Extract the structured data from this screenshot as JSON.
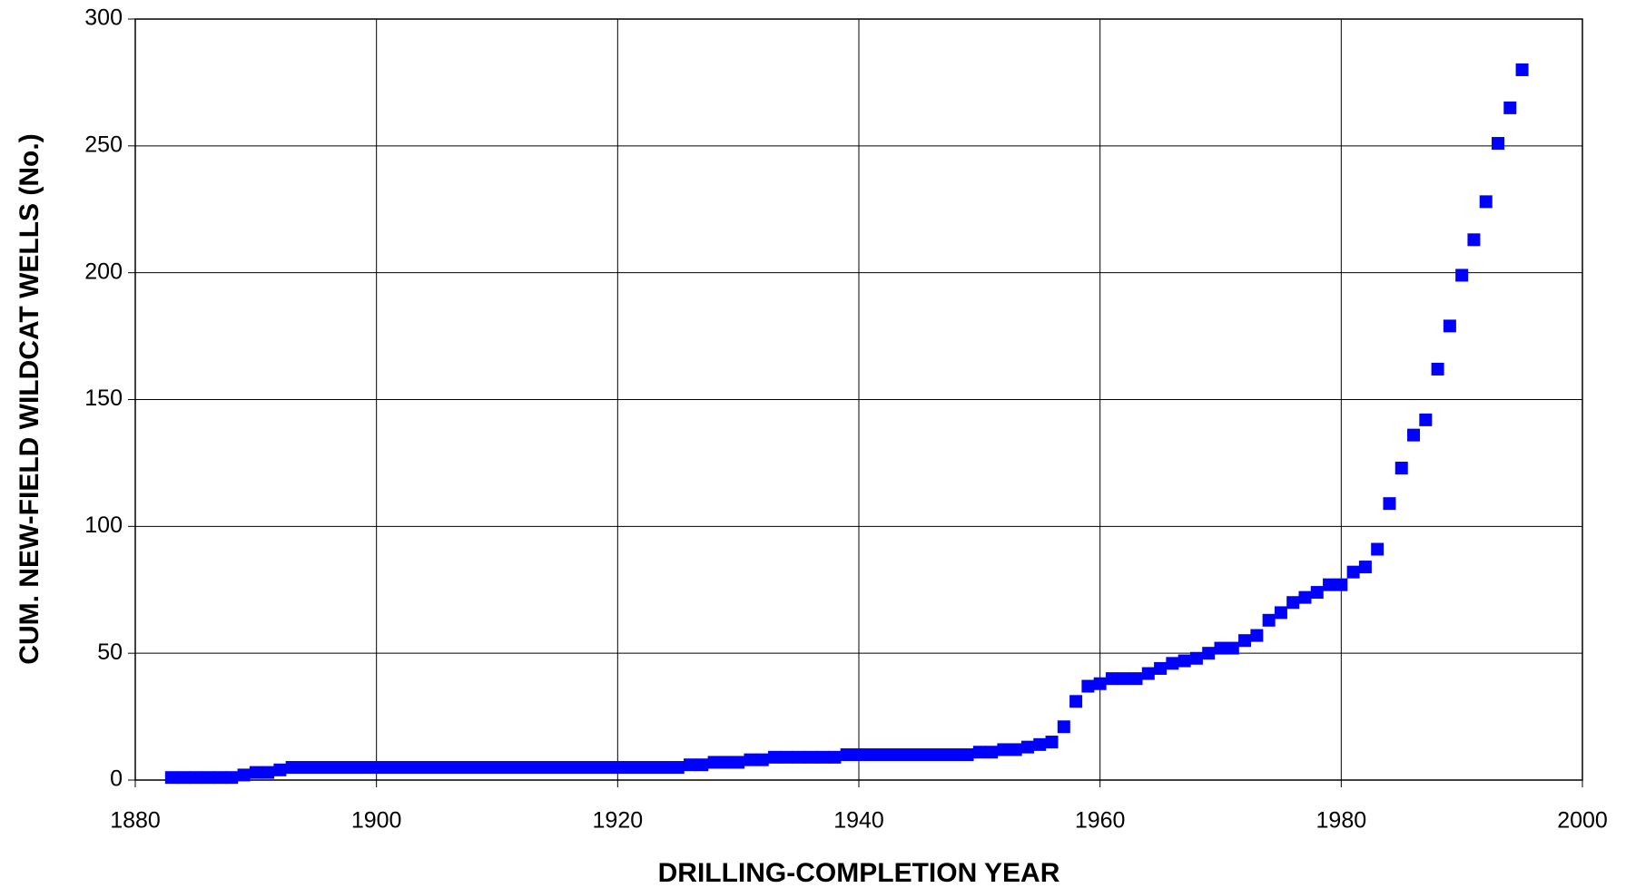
{
  "chart_data": {
    "type": "scatter",
    "xlabel": "DRILLING-COMPLETION YEAR",
    "ylabel": "CUM. NEW-FIELD WILDCAT WELLS (No.)",
    "color": "#0000ff",
    "grid": true,
    "xlim": [
      1880,
      2000
    ],
    "xticks": [
      1880,
      1900,
      1920,
      1940,
      1960,
      1980,
      2000
    ],
    "ylim": [
      0,
      300
    ],
    "yticks": [
      0,
      50,
      100,
      150,
      200,
      250,
      300
    ],
    "x": [
      1883,
      1884,
      1885,
      1886,
      1887,
      1888,
      1889,
      1890,
      1891,
      1892,
      1893,
      1894,
      1895,
      1896,
      1897,
      1898,
      1899,
      1900,
      1901,
      1902,
      1903,
      1904,
      1905,
      1906,
      1907,
      1908,
      1909,
      1910,
      1911,
      1912,
      1913,
      1914,
      1915,
      1916,
      1917,
      1918,
      1919,
      1920,
      1921,
      1922,
      1923,
      1924,
      1925,
      1926,
      1927,
      1928,
      1929,
      1930,
      1931,
      1932,
      1933,
      1934,
      1935,
      1936,
      1937,
      1938,
      1939,
      1940,
      1941,
      1942,
      1943,
      1944,
      1945,
      1946,
      1947,
      1948,
      1949,
      1950,
      1951,
      1952,
      1953,
      1954,
      1955,
      1956,
      1957,
      1958,
      1959,
      1960,
      1961,
      1962,
      1963,
      1964,
      1965,
      1966,
      1967,
      1968,
      1969,
      1970,
      1971,
      1972,
      1973,
      1974,
      1975,
      1976,
      1977,
      1978,
      1979,
      1980,
      1981,
      1982,
      1983,
      1984,
      1985,
      1986,
      1987,
      1988,
      1989,
      1990,
      1991,
      1992,
      1993,
      1994,
      1995
    ],
    "values": [
      1,
      1,
      1,
      1,
      1,
      1,
      2,
      3,
      3,
      4,
      5,
      5,
      5,
      5,
      5,
      5,
      5,
      5,
      5,
      5,
      5,
      5,
      5,
      5,
      5,
      5,
      5,
      5,
      5,
      5,
      5,
      5,
      5,
      5,
      5,
      5,
      5,
      5,
      5,
      5,
      5,
      5,
      5,
      6,
      6,
      7,
      7,
      7,
      8,
      8,
      9,
      9,
      9,
      9,
      9,
      9,
      10,
      10,
      10,
      10,
      10,
      10,
      10,
      10,
      10,
      10,
      10,
      11,
      11,
      12,
      12,
      13,
      14,
      15,
      21,
      31,
      37,
      38,
      40,
      40,
      40,
      42,
      44,
      46,
      47,
      48,
      50,
      52,
      52,
      55,
      57,
      63,
      66,
      70,
      72,
      74,
      77,
      77,
      82,
      84,
      91,
      109,
      123,
      136,
      142,
      162,
      179,
      199,
      213,
      228,
      251,
      265,
      280
    ]
  }
}
